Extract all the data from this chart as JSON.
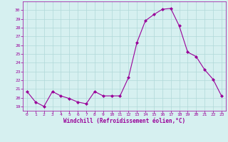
{
  "x": [
    0,
    1,
    2,
    3,
    4,
    5,
    6,
    7,
    8,
    9,
    10,
    11,
    12,
    13,
    14,
    15,
    16,
    17,
    18,
    19,
    20,
    21,
    22,
    23
  ],
  "y": [
    20.7,
    19.5,
    19.0,
    20.7,
    20.2,
    19.9,
    19.5,
    19.3,
    20.7,
    20.2,
    20.2,
    20.2,
    22.3,
    26.3,
    28.8,
    29.5,
    30.1,
    30.2,
    28.2,
    25.2,
    24.7,
    23.2,
    22.1,
    20.2
  ],
  "line_color": "#990099",
  "marker": "D",
  "marker_size": 2,
  "bg_color": "#d6f0f0",
  "grid_color": "#b0d8d8",
  "xlabel": "Windchill (Refroidissement éolien,°C)",
  "xlabel_color": "#990099",
  "tick_color": "#990099",
  "ylim": [
    18.5,
    31.0
  ],
  "xlim": [
    -0.5,
    23.5
  ],
  "yticks": [
    19,
    20,
    21,
    22,
    23,
    24,
    25,
    26,
    27,
    28,
    29,
    30
  ],
  "xticks": [
    0,
    1,
    2,
    3,
    4,
    5,
    6,
    7,
    8,
    9,
    10,
    11,
    12,
    13,
    14,
    15,
    16,
    17,
    18,
    19,
    20,
    21,
    22,
    23
  ]
}
